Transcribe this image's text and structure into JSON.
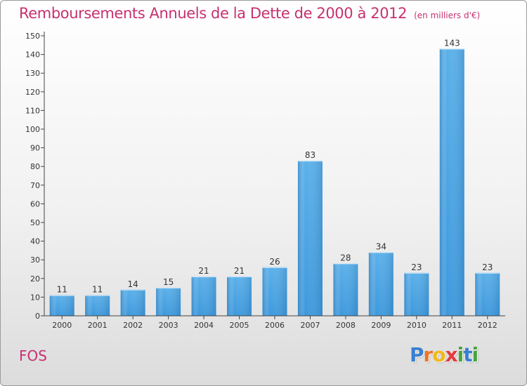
{
  "chart_data": {
    "type": "bar",
    "title": "Remboursements Annuels de la Dette de 2000 à 2012",
    "unit": "(en milliers d'€)",
    "categories": [
      "2000",
      "2001",
      "2002",
      "2003",
      "2004",
      "2005",
      "2006",
      "2007",
      "2008",
      "2009",
      "2010",
      "2011",
      "2012"
    ],
    "values": [
      11,
      11,
      14,
      15,
      21,
      21,
      26,
      83,
      28,
      34,
      23,
      143,
      23
    ],
    "ylim": [
      0,
      150
    ],
    "yticks": [
      0,
      10,
      20,
      30,
      40,
      50,
      60,
      70,
      80,
      90,
      100,
      110,
      120,
      130,
      140,
      150
    ],
    "grid": false,
    "bar_color": "#3c98dc",
    "axis_color": "#444444"
  },
  "commune": "FOS",
  "logo": {
    "letters": [
      {
        "ch": "P",
        "color": "#3a7fd0"
      },
      {
        "ch": "r",
        "color": "#e8762a"
      },
      {
        "ch": "o",
        "color": "#f2b81c"
      },
      {
        "ch": "x",
        "color": "#e23c3c"
      },
      {
        "ch": "i",
        "color": "#49a53b"
      },
      {
        "ch": "t",
        "color": "#3a7fd0"
      },
      {
        "ch": "i",
        "color": "#49a53b"
      }
    ]
  }
}
